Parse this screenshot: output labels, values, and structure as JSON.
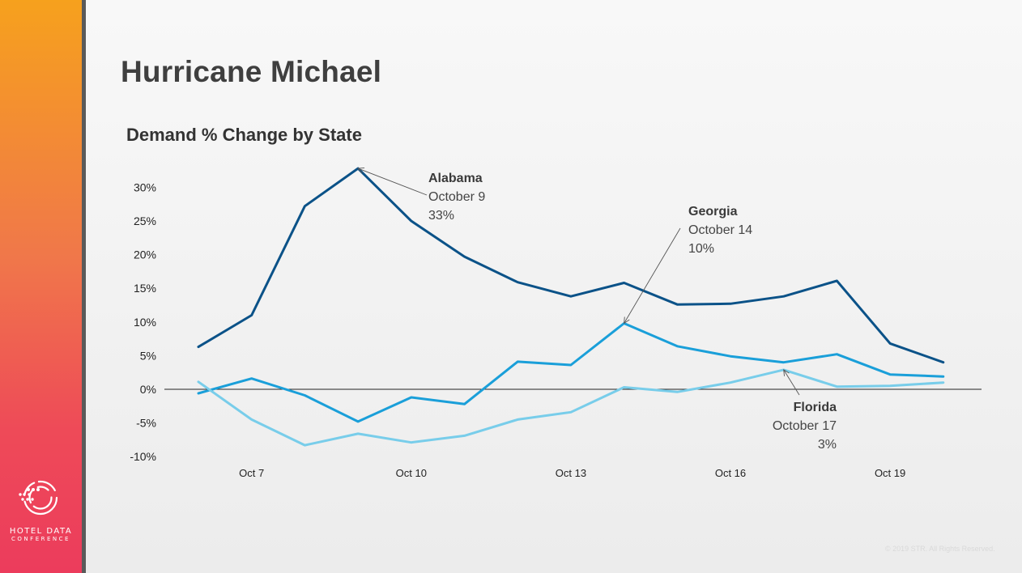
{
  "slide": {
    "title": "Hurricane Michael",
    "logo": {
      "line1": "HOTEL DATA",
      "line2": "CONFERENCE"
    },
    "copyright": "© 2019 STR. All Rights Reserved.",
    "colors": {
      "sidebar_top": "#f6a11d",
      "sidebar_bottom": "#ec3c5c",
      "divider": "#5a5a5a"
    }
  },
  "chart_data": {
    "type": "line",
    "title": "Demand % Change by State",
    "xlabel": "",
    "ylabel": "",
    "x": [
      "Oct 6",
      "Oct 7",
      "Oct 8",
      "Oct 9",
      "Oct 10",
      "Oct 11",
      "Oct 12",
      "Oct 13",
      "Oct 14",
      "Oct 15",
      "Oct 16",
      "Oct 17",
      "Oct 18",
      "Oct 19",
      "Oct 20"
    ],
    "xticks": [
      "Oct 7",
      "Oct 10",
      "Oct 13",
      "Oct 16",
      "Oct 19"
    ],
    "yticks": [
      "30%",
      "25%",
      "20%",
      "15%",
      "10%",
      "5%",
      "0%",
      "-5%",
      "-10%"
    ],
    "ylim": [
      -10,
      33
    ],
    "grid": false,
    "zero_line": true,
    "series": [
      {
        "name": "Alabama",
        "color": "#0b5288",
        "values": [
          6.3,
          11.0,
          27.2,
          32.8,
          25.0,
          19.7,
          15.9,
          13.8,
          15.8,
          12.6,
          12.7,
          13.8,
          16.1,
          6.8,
          4.0
        ]
      },
      {
        "name": "Georgia",
        "color": "#1a9fd9",
        "values": [
          -0.6,
          1.6,
          -0.9,
          -4.8,
          -1.2,
          -2.2,
          4.1,
          3.6,
          9.8,
          6.4,
          4.9,
          4.0,
          5.2,
          2.2,
          1.9
        ]
      },
      {
        "name": "Florida",
        "color": "#78cdea",
        "values": [
          1.1,
          -4.5,
          -8.3,
          -6.6,
          -7.9,
          -6.9,
          -4.5,
          -3.4,
          0.3,
          -0.4,
          1.0,
          2.9,
          0.4,
          0.5,
          1.0
        ]
      }
    ],
    "annotations": [
      {
        "series": "Alabama",
        "name": "Alabama",
        "date": "October 9",
        "value_label": "33%",
        "point_index": 3,
        "align": "start"
      },
      {
        "series": "Georgia",
        "name": "Georgia",
        "date": "October 14",
        "value_label": "10%",
        "point_index": 8,
        "align": "start"
      },
      {
        "series": "Florida",
        "name": "Florida",
        "date": "October 17",
        "value_label": "3%",
        "point_index": 11,
        "align": "end"
      }
    ]
  }
}
